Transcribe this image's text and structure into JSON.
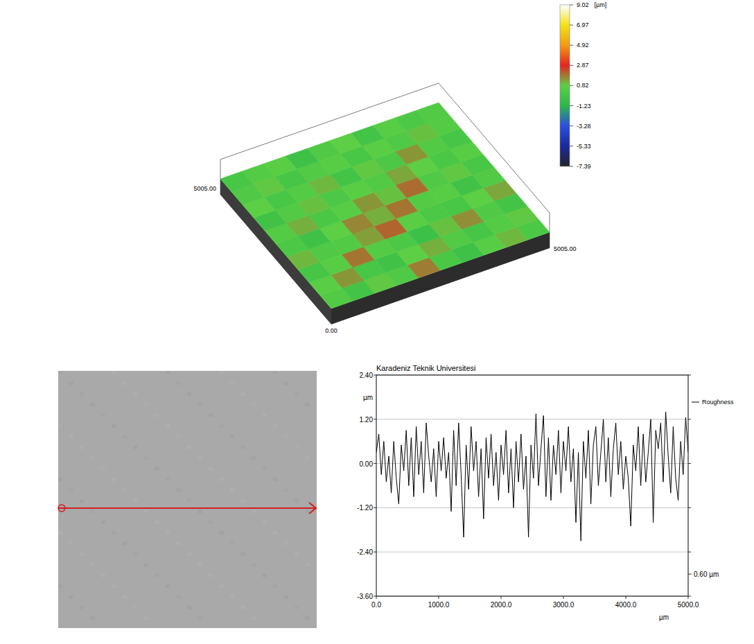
{
  "chart_data": [
    {
      "type": "surface",
      "xlim": [
        0,
        5005
      ],
      "ylim": [
        0,
        5005
      ],
      "xticks": [
        {
          "value": 0,
          "label": "0.00"
        },
        {
          "value": 5005,
          "label": "5005.00"
        }
      ],
      "yticks": [
        {
          "value": 5005,
          "label": "5005.00"
        }
      ],
      "cells": [
        [
          0.4,
          -0.2,
          0.9,
          0.3,
          1.8,
          0.1,
          -0.4,
          0.6,
          1.1,
          0.2
        ],
        [
          0.7,
          1.5,
          0.0,
          -0.3,
          0.8,
          1.2,
          0.4,
          -0.1,
          0.5,
          0.9
        ],
        [
          -0.1,
          0.6,
          1.9,
          0.5,
          0.2,
          -0.5,
          1.0,
          1.6,
          0.3,
          -0.2
        ],
        [
          1.1,
          0.3,
          0.4,
          1.4,
          2.1,
          0.7,
          0.2,
          0.0,
          0.8,
          1.3
        ],
        [
          0.2,
          -0.4,
          0.8,
          1.7,
          1.2,
          1.9,
          0.5,
          0.6,
          -0.3,
          0.4
        ],
        [
          0.5,
          1.2,
          0.1,
          0.6,
          1.5,
          1.0,
          2.0,
          0.3,
          0.9,
          0.0
        ],
        [
          -0.3,
          0.4,
          1.0,
          0.2,
          0.7,
          0.4,
          1.3,
          0.8,
          0.1,
          0.6
        ],
        [
          0.8,
          0.0,
          0.5,
          1.1,
          -0.2,
          0.9,
          0.2,
          1.5,
          0.4,
          -0.1
        ],
        [
          0.3,
          0.9,
          -0.1,
          0.4,
          0.6,
          0.0,
          0.7,
          0.3,
          1.0,
          0.5
        ],
        [
          0.0,
          0.5,
          0.7,
          -0.4,
          0.3,
          0.8,
          -0.2,
          0.6,
          0.2,
          0.4
        ]
      ],
      "colorbar": {
        "label": "[µm]",
        "range": [
          -7.39,
          9.02
        ],
        "ticks": [
          9.02,
          6.97,
          4.92,
          2.87,
          0.82,
          -1.23,
          -3.28,
          -5.33,
          -7.39
        ]
      }
    },
    {
      "type": "line",
      "title": "Karadeniz Teknik Universitesi",
      "x_label": "µm",
      "y_label": "µm",
      "xlim": [
        0,
        5000
      ],
      "ylim": [
        -3.6,
        2.4
      ],
      "xticks": [
        {
          "value": 0,
          "label": "0.0"
        },
        {
          "value": 1000,
          "label": "1000.0"
        },
        {
          "value": 2000,
          "label": "2000.0"
        },
        {
          "value": 3000,
          "label": "3000.0"
        },
        {
          "value": 4000,
          "label": "4000.0"
        },
        {
          "value": 5000,
          "label": "5000.0"
        }
      ],
      "yticks": [
        {
          "value": -3.6,
          "label": "-3.60"
        },
        {
          "value": -2.4,
          "label": "-2.40"
        },
        {
          "value": -1.2,
          "label": "-1.20"
        },
        {
          "value": 0,
          "label": "0.00"
        },
        {
          "value": 1.2,
          "label": "1.20"
        },
        {
          "value": 2.4,
          "label": "2.40"
        }
      ],
      "grid": true,
      "legend": "right",
      "x": [
        0,
        40,
        80,
        120,
        160,
        200,
        240,
        280,
        320,
        360,
        400,
        440,
        480,
        520,
        560,
        600,
        640,
        680,
        720,
        760,
        800,
        840,
        880,
        920,
        960,
        1000,
        1040,
        1080,
        1120,
        1160,
        1200,
        1240,
        1280,
        1320,
        1360,
        1400,
        1440,
        1480,
        1520,
        1560,
        1600,
        1640,
        1680,
        1720,
        1760,
        1800,
        1840,
        1880,
        1920,
        1960,
        2000,
        2040,
        2080,
        2120,
        2160,
        2200,
        2240,
        2280,
        2320,
        2360,
        2400,
        2440,
        2480,
        2520,
        2560,
        2600,
        2640,
        2680,
        2720,
        2760,
        2800,
        2840,
        2880,
        2920,
        2960,
        3000,
        3040,
        3080,
        3120,
        3160,
        3200,
        3240,
        3280,
        3320,
        3360,
        3400,
        3440,
        3480,
        3520,
        3560,
        3600,
        3640,
        3680,
        3720,
        3760,
        3800,
        3840,
        3880,
        3920,
        3960,
        4000,
        4040,
        4080,
        4120,
        4160,
        4200,
        4240,
        4280,
        4320,
        4360,
        4400,
        4440,
        4480,
        4520,
        4560,
        4600,
        4640,
        4680,
        4720,
        4760,
        4800,
        4840,
        4880,
        4920,
        4960,
        5000
      ],
      "series": [
        {
          "name": "Roughness",
          "color": "#000000",
          "values": [
            0.3,
            0.8,
            -0.3,
            0.6,
            -0.5,
            0.2,
            -0.8,
            0.6,
            -0.4,
            -1.1,
            0.5,
            -0.2,
            0.9,
            -0.6,
            0.7,
            -0.9,
            1.0,
            -0.3,
            0.6,
            -0.8,
            1.1,
            0.2,
            -0.5,
            0.4,
            -0.9,
            0.6,
            -0.2,
            0.7,
            -0.4,
            0.3,
            -1.3,
            0.9,
            -0.6,
            1.1,
            -0.3,
            -2.0,
            0.5,
            -0.7,
            1.0,
            -0.2,
            0.6,
            -0.9,
            0.4,
            -1.5,
            0.7,
            -0.4,
            0.8,
            -0.6,
            0.3,
            -1.0,
            0.5,
            -0.3,
            0.9,
            -0.8,
            0.4,
            -1.2,
            0.6,
            -0.5,
            0.8,
            -0.7,
            0.2,
            -2.0,
            0.5,
            -0.4,
            1.35,
            -0.6,
            0.4,
            1.3,
            -0.9,
            0.7,
            -1.0,
            0.5,
            -0.3,
            0.9,
            -0.8,
            0.6,
            -0.2,
            1.0,
            -0.5,
            0.4,
            -1.6,
            0.3,
            -2.1,
            0.6,
            -0.4,
            0.9,
            -1.1,
            0.5,
            1.0,
            -0.6,
            0.3,
            1.2,
            -0.5,
            0.7,
            -0.9,
            0.4,
            1.1,
            -0.3,
            0.6,
            -0.7,
            0.2,
            -0.4,
            -1.7,
            0.5,
            -0.2,
            1.0,
            -0.6,
            0.8,
            -0.5,
            0.3,
            1.2,
            -1.6,
            0.9,
            0.4,
            1.1,
            -0.5,
            1.4,
            0.2,
            -0.8,
            1.0,
            -0.4,
            -1.0,
            0.6,
            -0.3,
            1.25,
            0.3
          ]
        }
      ],
      "annotations": [
        {
          "text": "0.60 µm",
          "y": -3.0
        }
      ]
    }
  ]
}
